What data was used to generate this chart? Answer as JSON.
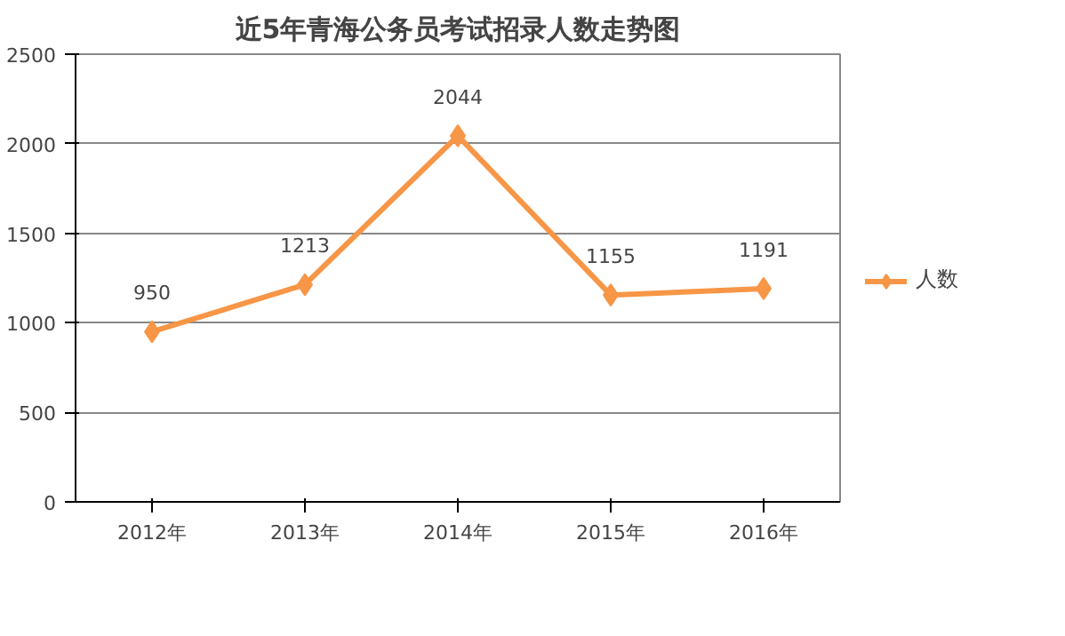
{
  "chart_data": {
    "type": "line",
    "title": "近5年青海公务员考试招录人数走势图",
    "categories": [
      "2012年",
      "2013年",
      "2014年",
      "2015年",
      "2016年"
    ],
    "series": [
      {
        "name": "人数",
        "color": "#f79646",
        "values": [
          950,
          1213,
          2044,
          1155,
          1191
        ]
      }
    ],
    "ylim": [
      0,
      2500
    ],
    "yticks": [
      0,
      500,
      1000,
      1500,
      2000,
      2500
    ],
    "grid": "y",
    "legend": "right",
    "marker": "diamond",
    "line_style": "solid",
    "data_labels": true
  }
}
